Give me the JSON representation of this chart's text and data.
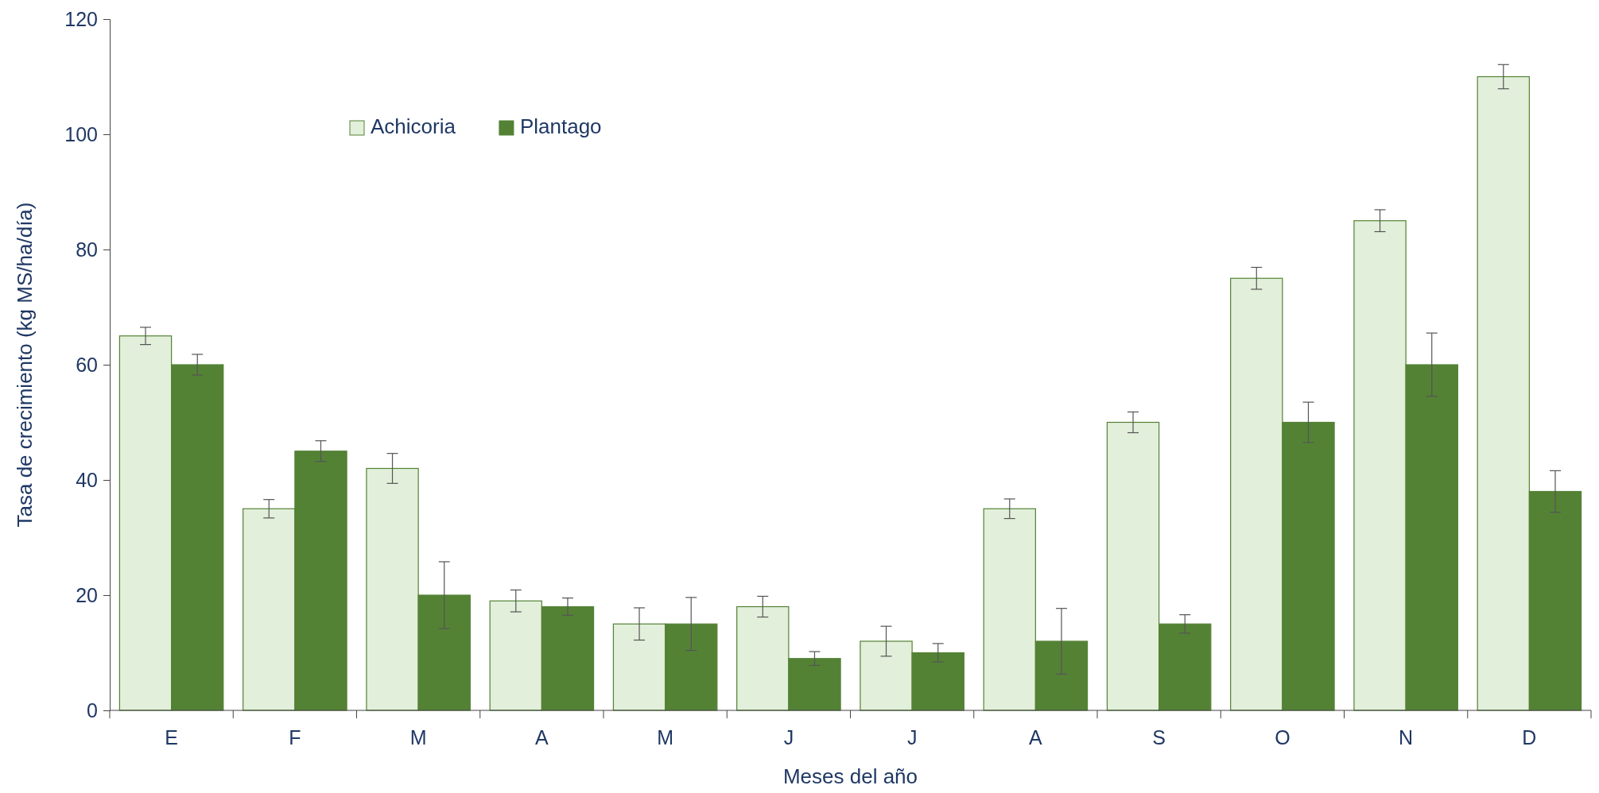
{
  "chart_data": {
    "type": "bar",
    "xlabel": "Meses del año",
    "ylabel": "Tasa de crecimiento (kg MS/ha/día)",
    "categories": [
      "E",
      "F",
      "M",
      "A",
      "M",
      "J",
      "J",
      "A",
      "S",
      "O",
      "N",
      "D"
    ],
    "ylim": [
      0,
      120
    ],
    "yticks": [
      0,
      20,
      40,
      60,
      80,
      100,
      120
    ],
    "grid": false,
    "legend": "top left",
    "series": [
      {
        "name": "Achicoria",
        "color": "#e2efda",
        "values": [
          65,
          35,
          42,
          19,
          15,
          18,
          12,
          35,
          50,
          75,
          85,
          110
        ],
        "errors": [
          1.5,
          1.6,
          2.6,
          1.9,
          2.8,
          1.8,
          2.6,
          1.7,
          1.8,
          1.9,
          1.9,
          2.1
        ]
      },
      {
        "name": "Plantago",
        "color": "#548235",
        "values": [
          60,
          45,
          20,
          18,
          15,
          9,
          10,
          12,
          15,
          50,
          60,
          38
        ],
        "errors": [
          1.8,
          1.8,
          5.8,
          1.5,
          4.6,
          1.2,
          1.6,
          5.7,
          1.6,
          3.5,
          5.5,
          3.6
        ]
      }
    ]
  }
}
